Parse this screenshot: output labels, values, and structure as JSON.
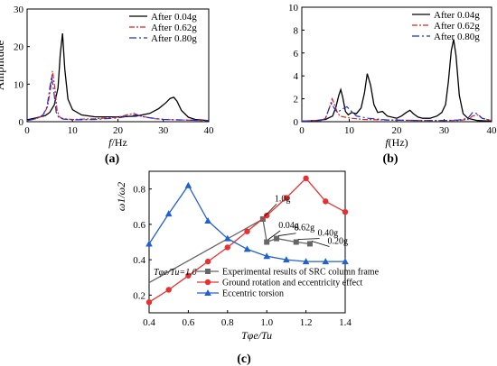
{
  "panel_labels": [
    "(a)",
    "(b)",
    "(c)"
  ],
  "chart_data": [
    {
      "type": "line",
      "xlabel_italic": "f",
      "xlabel_rest": "/Hz",
      "ylabel": "Amplitude",
      "xlim": [
        0,
        40
      ],
      "ylim": [
        0,
        30
      ],
      "xticks": [
        0,
        10,
        20,
        30,
        40
      ],
      "yticks": [
        0,
        10,
        20,
        30
      ],
      "legend_position": "top-right",
      "series": [
        {
          "name": "After 0.04g",
          "color": "#000000",
          "dash": "",
          "x": [
            0,
            2,
            4,
            5,
            6,
            6.8,
            7.3,
            7.8,
            8.3,
            9,
            10,
            12,
            15,
            20,
            24,
            27,
            29,
            30.5,
            31.5,
            32.3,
            33,
            34,
            35.5,
            37,
            40
          ],
          "y": [
            0.5,
            1,
            1.6,
            2.5,
            4.5,
            9,
            18,
            23.5,
            14,
            6,
            3.2,
            1.8,
            1.3,
            1.3,
            1.5,
            2.2,
            3.5,
            5,
            6.2,
            6.5,
            5.5,
            3,
            1.2,
            0.6,
            0.3
          ]
        },
        {
          "name": "After 0.62g",
          "color": "#e02020",
          "dash": "6 2 2 2",
          "x": [
            0,
            2,
            3.5,
            4.5,
            5.2,
            5.6,
            6.1,
            6.6,
            7.2,
            8,
            10,
            15,
            20,
            22,
            23.5,
            25,
            28,
            32,
            40
          ],
          "y": [
            0.3,
            0.8,
            1.6,
            4,
            9,
            13.5,
            9,
            3,
            1.2,
            0.8,
            0.6,
            0.8,
            1.2,
            1.8,
            2.2,
            1.5,
            0.8,
            0.5,
            0.3
          ]
        },
        {
          "name": "After 0.80g",
          "color": "#2030d0",
          "dash": "8 3 2 3",
          "x": [
            0,
            2,
            3.5,
            4.4,
            5,
            5.4,
            5.9,
            6.4,
            7,
            8,
            10,
            15,
            20,
            22.5,
            24,
            26,
            30,
            40
          ],
          "y": [
            0.3,
            0.8,
            1.8,
            4,
            9,
            12,
            8,
            2.5,
            1,
            0.7,
            0.5,
            0.6,
            1,
            1.5,
            1.8,
            1.2,
            0.6,
            0.3
          ]
        }
      ]
    },
    {
      "type": "line",
      "xlabel_italic": "f",
      "xlabel_rest": "(Hz)",
      "ylabel": "",
      "xlim": [
        0,
        40
      ],
      "ylim": [
        0,
        10
      ],
      "xticks": [
        0,
        10,
        20,
        30,
        40
      ],
      "yticks": [
        0,
        2,
        4,
        6,
        8,
        10
      ],
      "legend_position": "top-right",
      "series": [
        {
          "name": "After 0.04g",
          "color": "#000000",
          "dash": "",
          "x": [
            0,
            3,
            5,
            6.5,
            7.2,
            7.8,
            8.2,
            8.6,
            9.2,
            9.8,
            10.5,
            11.5,
            12.5,
            13.2,
            13.8,
            14.5,
            15.2,
            16,
            17,
            18,
            20,
            21,
            22,
            22.8,
            23.5,
            24.5,
            25.5,
            27,
            28.5,
            29.5,
            30.3,
            30.9,
            31.5,
            32,
            32.5,
            33.2,
            34,
            35,
            37,
            40
          ],
          "y": [
            0.05,
            0.1,
            0.2,
            0.5,
            1.3,
            2.3,
            2.8,
            2.2,
            0.9,
            0.6,
            0.8,
            0.7,
            1.2,
            2.5,
            4.2,
            3.2,
            1.5,
            0.8,
            0.9,
            0.5,
            0.3,
            0.5,
            0.8,
            1,
            0.7,
            0.4,
            0.3,
            0.3,
            0.5,
            0.8,
            1.5,
            3.5,
            6.2,
            7.2,
            5.8,
            2.3,
            0.7,
            0.3,
            0.1,
            0.05
          ]
        },
        {
          "name": "After 0.62g",
          "color": "#e02020",
          "dash": "6 2 2 2",
          "x": [
            0,
            4,
            5,
            5.8,
            6.4,
            6.8,
            7.4,
            8,
            9,
            10.5,
            13,
            18,
            25,
            30,
            33,
            35,
            36,
            37,
            38,
            40
          ],
          "y": [
            0.05,
            0.1,
            0.3,
            1.2,
            2,
            1.6,
            0.9,
            0.5,
            0.4,
            0.3,
            0.2,
            0.15,
            0.1,
            0.1,
            0.1,
            0.2,
            0.5,
            0.6,
            0.3,
            0.1
          ]
        },
        {
          "name": "After 0.80g",
          "color": "#2030d0",
          "dash": "8 3 2 3",
          "x": [
            0,
            4,
            5,
            5.8,
            6.3,
            6.8,
            7.5,
            8.5,
            9.5,
            10.5,
            11.5,
            14,
            18,
            25,
            30,
            33,
            35,
            36,
            37,
            38,
            40
          ],
          "y": [
            0.05,
            0.1,
            0.3,
            1.2,
            1.6,
            1.2,
            0.8,
            1.1,
            1.3,
            0.9,
            0.5,
            0.3,
            0.15,
            0.1,
            0.1,
            0.15,
            0.3,
            0.8,
            0.7,
            0.3,
            0.1
          ]
        }
      ]
    },
    {
      "type": "line",
      "ylabel": "ω1/ω2",
      "xlabel": "Tφe/Tu",
      "xlim": [
        0.4,
        1.4
      ],
      "ylim": [
        0.1,
        0.9
      ],
      "xticks": [
        0.4,
        0.6,
        0.8,
        1.0,
        1.2,
        1.4
      ],
      "yticks": [
        0.2,
        0.4,
        0.6,
        0.8
      ],
      "legend_position": "bottom-left",
      "legend_title": "Tφe/Tu=1.0",
      "series": [
        {
          "name": "Experimental results of SRC column frame",
          "color": "#666666",
          "marker": "square",
          "x": [
            0.4,
            0.98,
            1.0,
            1.05,
            1.15,
            1.22
          ],
          "y": [
            0.27,
            0.63,
            0.5,
            0.52,
            0.5,
            0.49
          ]
        },
        {
          "name": "Ground rotation and eccentricity effect",
          "color": "#e83030",
          "marker": "circle",
          "x": [
            0.4,
            0.5,
            0.6,
            0.7,
            0.8,
            0.9,
            1.0,
            1.1,
            1.2,
            1.3,
            1.4
          ],
          "y": [
            0.16,
            0.23,
            0.31,
            0.39,
            0.47,
            0.56,
            0.65,
            0.75,
            0.86,
            0.73,
            0.67
          ]
        },
        {
          "name": "Eccentric torsion",
          "color": "#2060d0",
          "marker": "triangle",
          "x": [
            0.4,
            0.5,
            0.6,
            0.7,
            0.8,
            0.9,
            1.0,
            1.1,
            1.2,
            1.3,
            1.4
          ],
          "y": [
            0.49,
            0.66,
            0.82,
            0.62,
            0.52,
            0.46,
            0.42,
            0.4,
            0.39,
            0.39,
            0.39
          ]
        }
      ],
      "annotations": [
        "1.0g",
        "0.04g",
        "0.62g",
        "0.40g",
        "0.20g"
      ]
    }
  ]
}
